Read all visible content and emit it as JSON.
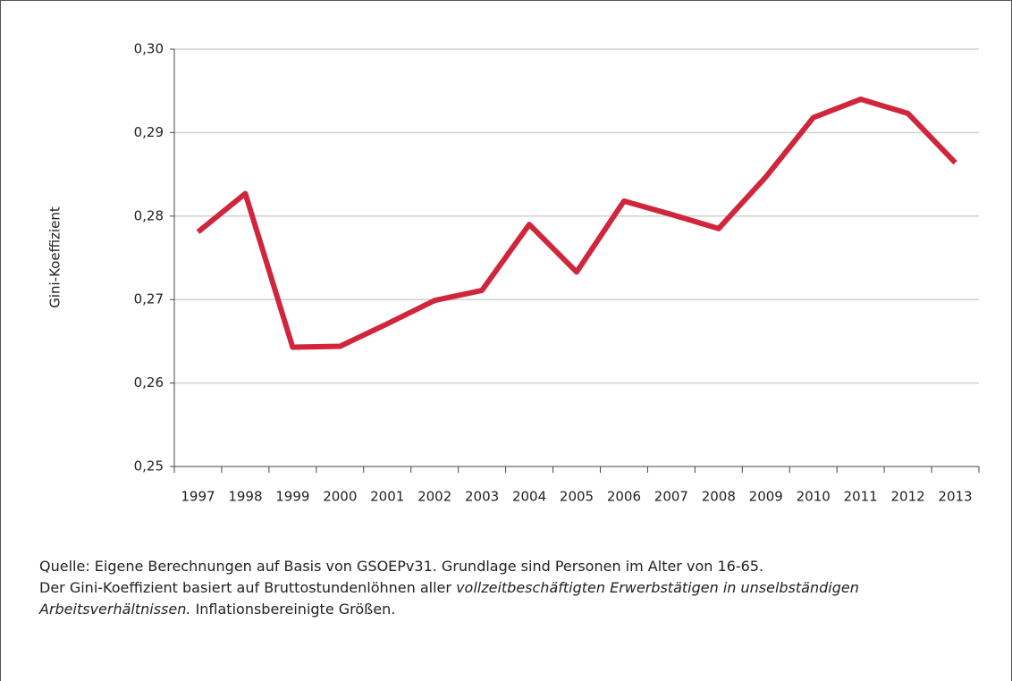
{
  "chart_data": {
    "type": "line",
    "y_label": "Gini-Koeffizient",
    "categories": [
      "1997",
      "1998",
      "1999",
      "2000",
      "2001",
      "2002",
      "2003",
      "2004",
      "2005",
      "2006",
      "2007",
      "2008",
      "2009",
      "2010",
      "2011",
      "2012",
      "2013"
    ],
    "series": [
      {
        "name": "Gini-Koeffizient",
        "color": "#d0253a",
        "values": [
          0.2781,
          0.2827,
          0.2643,
          0.2644,
          0.2671,
          0.2699,
          0.2711,
          0.279,
          0.2733,
          0.2818,
          0.2802,
          0.2785,
          0.2847,
          0.2918,
          0.294,
          0.2923,
          0.2864
        ]
      }
    ],
    "ylim": [
      0.25,
      0.3
    ],
    "yticks": [
      {
        "value": 0.25,
        "label": "0,25"
      },
      {
        "value": 0.26,
        "label": "0,26"
      },
      {
        "value": 0.27,
        "label": "0,27"
      },
      {
        "value": 0.28,
        "label": "0,28"
      },
      {
        "value": 0.29,
        "label": "0,29"
      },
      {
        "value": 0.3,
        "label": "0,30"
      }
    ],
    "grid": true,
    "footnote": {
      "line1": "Quelle: Eigene Berechnungen auf Basis von GSOEPv31. Grundlage sind Personen im Alter von 16-65.",
      "line2_start": "Der Gini-Koeffizient basiert auf Bruttostundenlöhnen aller",
      "line2_italic": "vollzeitbeschäftigten Erwerbstätigen in unselbständigen Arbeitsverhältnissen.",
      "line2_end": "Inflationsbereinigte Größen."
    }
  }
}
